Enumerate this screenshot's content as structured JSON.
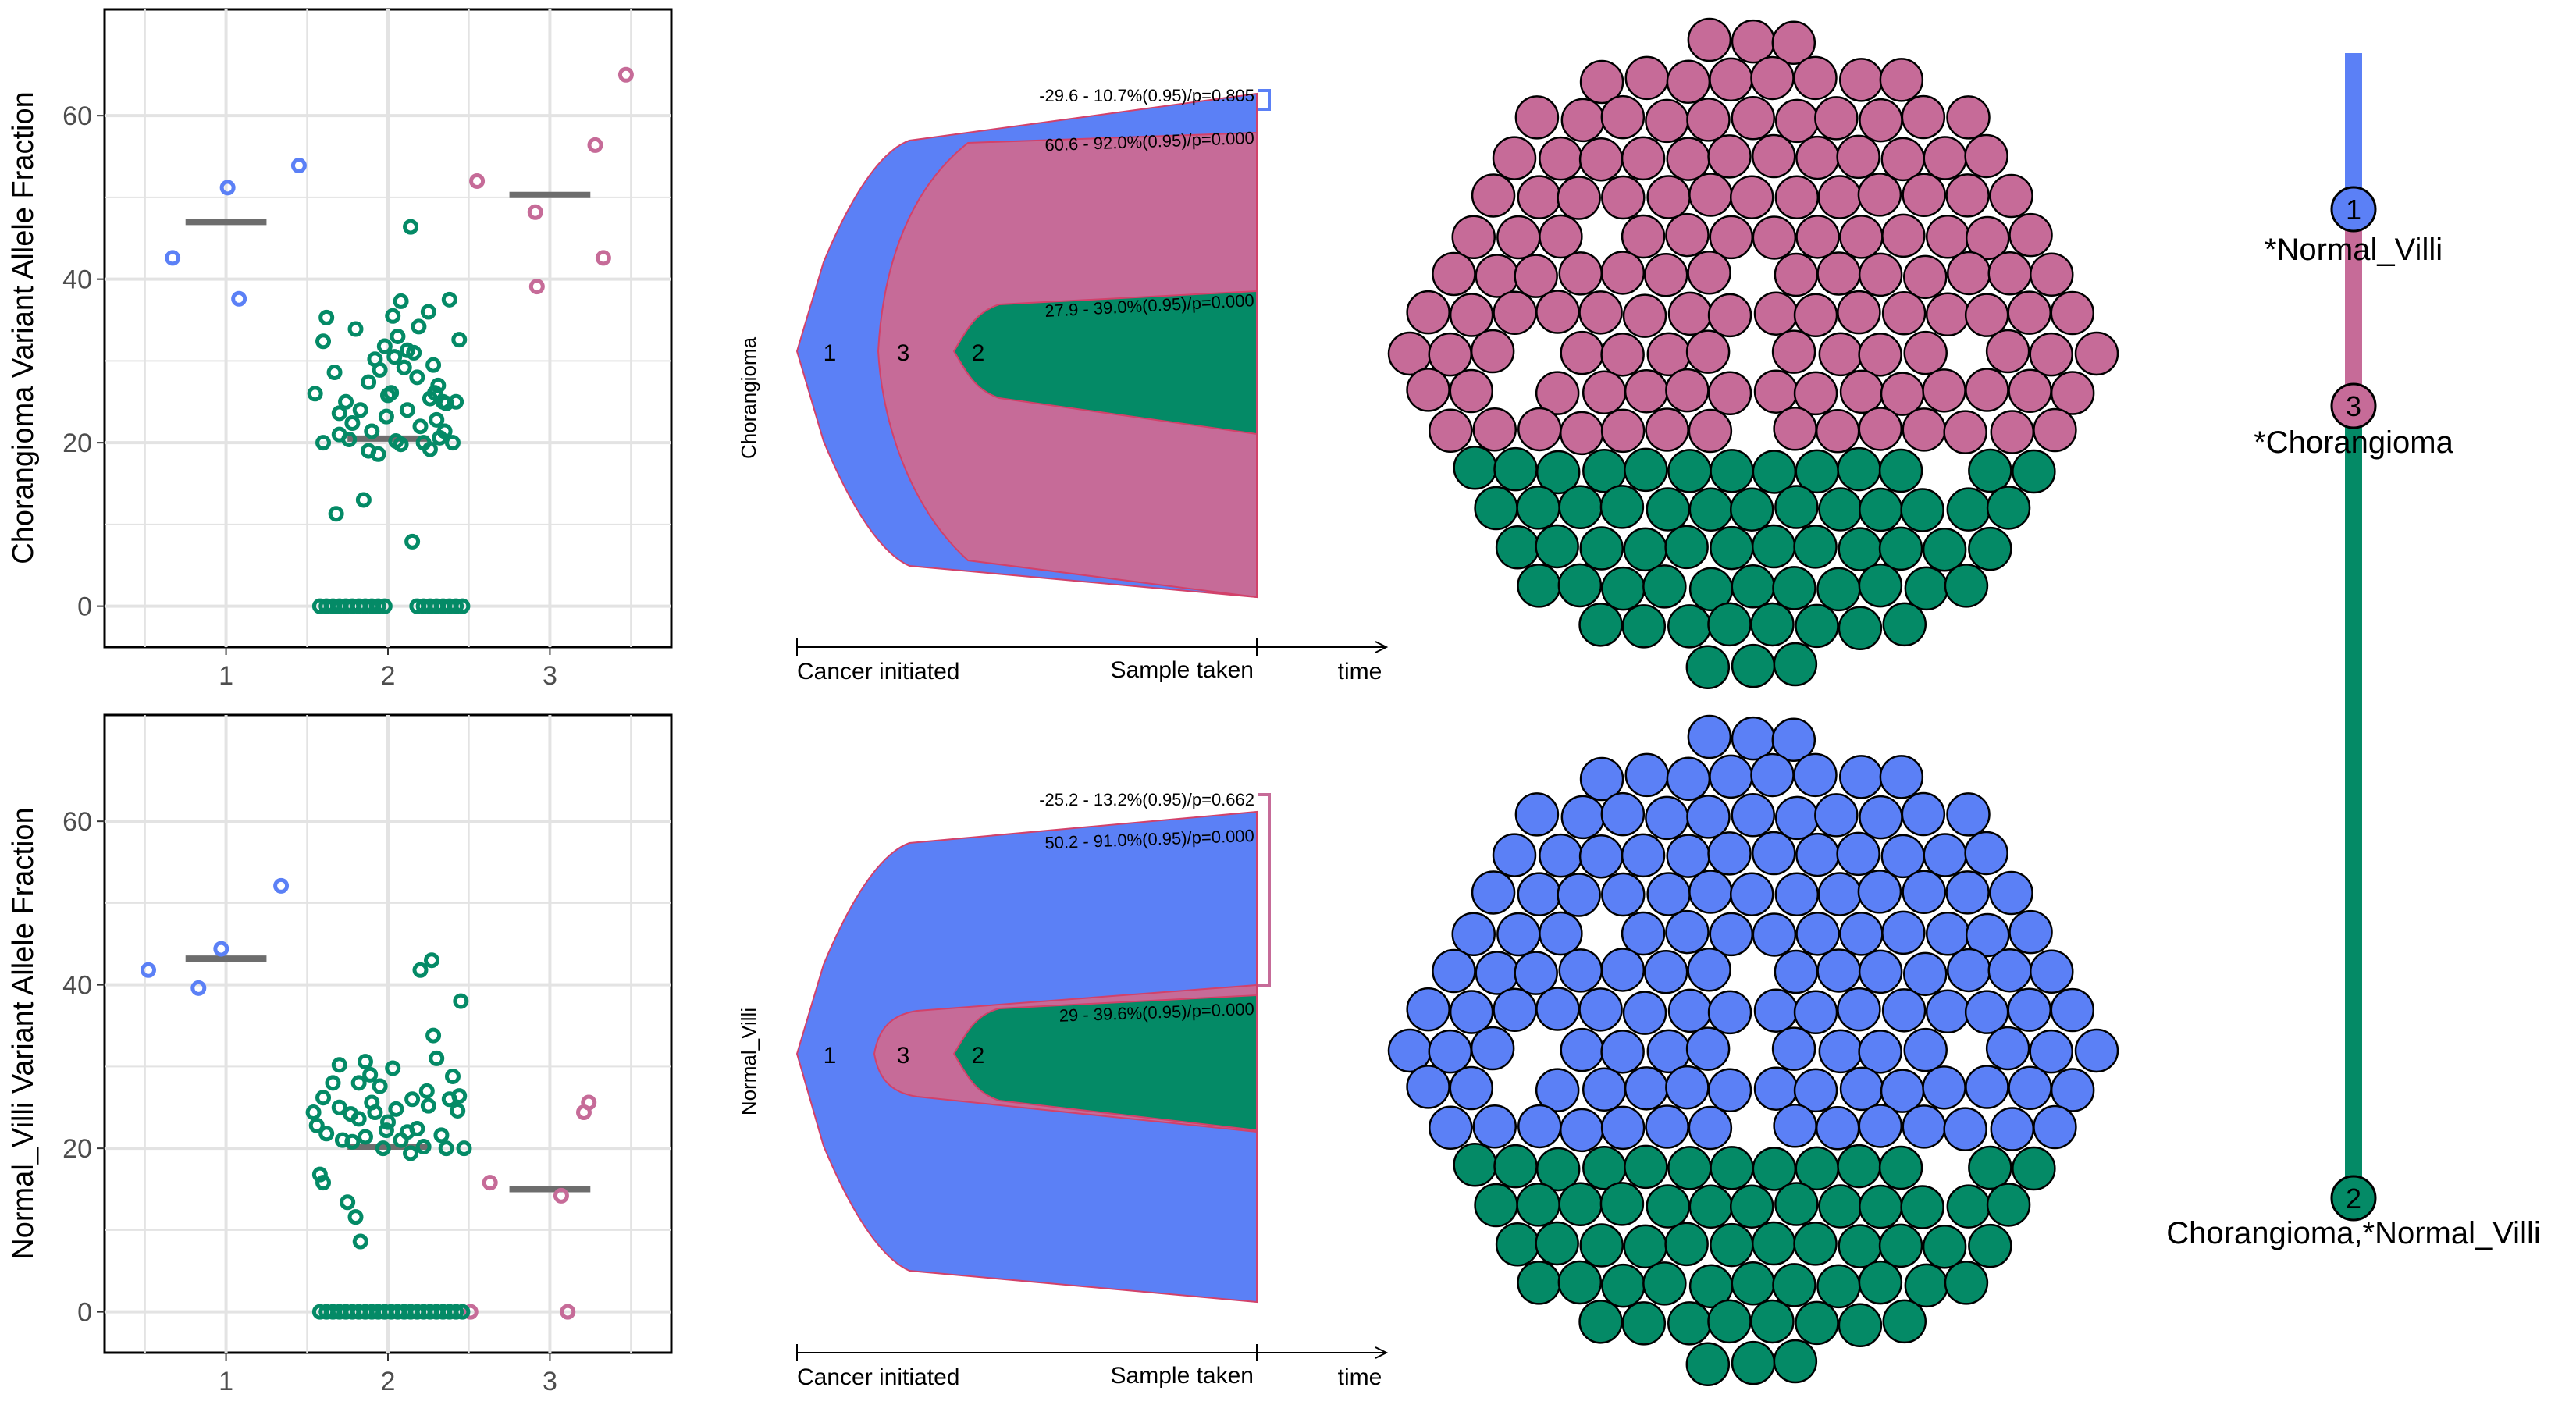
{
  "colors": {
    "clone1": "#5b80f6",
    "clone2": "#048a66",
    "clone3": "#c66b98",
    "median": "#6d6d6d",
    "grid": "#e3e3e3",
    "fishEdge": "#d2416a"
  },
  "chart_data": [
    {
      "type": "scatter",
      "sample": "Chorangioma",
      "ylabel": "Chorangioma Variant Allele Fraction",
      "xlabel": "",
      "x_ticks": [
        "1",
        "2",
        "3"
      ],
      "y_ticks": [
        "0",
        "20",
        "40",
        "60"
      ],
      "ylim": [
        -5,
        73
      ],
      "xlim": [
        0.25,
        3.75
      ],
      "grid": true,
      "medians": [
        {
          "cluster": 1,
          "value": 47
        },
        {
          "cluster": 2,
          "value": 20.5
        },
        {
          "cluster": 3,
          "value": 50.3
        }
      ],
      "series": [
        {
          "cluster": 1,
          "points": [
            [
              0.67,
              42.6
            ],
            [
              1.01,
              51.2
            ],
            [
              1.08,
              37.6
            ],
            [
              1.45,
              53.9
            ]
          ]
        },
        {
          "cluster": 3,
          "points": [
            [
              2.55,
              52.0
            ],
            [
              2.91,
              48.2
            ],
            [
              2.92,
              39.1
            ],
            [
              3.28,
              56.4
            ],
            [
              3.33,
              42.6
            ],
            [
              3.47,
              65.0
            ]
          ]
        },
        {
          "cluster": 2,
          "points": [
            [
              1.55,
              26.0
            ],
            [
              1.6,
              20.0
            ],
            [
              1.6,
              32.4
            ],
            [
              1.62,
              35.3
            ],
            [
              1.68,
              11.3
            ],
            [
              1.7,
              21.0
            ],
            [
              1.74,
              25.0
            ],
            [
              1.8,
              33.9
            ],
            [
              1.78,
              22.4
            ],
            [
              1.85,
              13.0
            ],
            [
              1.88,
              19.0
            ],
            [
              1.88,
              27.4
            ],
            [
              1.92,
              30.2
            ],
            [
              1.95,
              28.9
            ],
            [
              1.98,
              31.8
            ],
            [
              1.99,
              23.2
            ],
            [
              2.02,
              26.1
            ],
            [
              2.03,
              35.5
            ],
            [
              2.05,
              20.2
            ],
            [
              2.06,
              33.0
            ],
            [
              2.08,
              37.3
            ],
            [
              2.1,
              29.2
            ],
            [
              2.12,
              31.3
            ],
            [
              2.12,
              24.0
            ],
            [
              2.14,
              46.4
            ],
            [
              2.15,
              7.9
            ],
            [
              2.18,
              28.0
            ],
            [
              2.2,
              22.0
            ],
            [
              2.22,
              20.0
            ],
            [
              2.25,
              36.0
            ],
            [
              2.26,
              19.2
            ],
            [
              2.28,
              29.5
            ],
            [
              2.29,
              26.1
            ],
            [
              2.3,
              22.8
            ],
            [
              2.32,
              20.6
            ],
            [
              2.34,
              25.0
            ],
            [
              2.36,
              24.8
            ],
            [
              2.38,
              37.5
            ],
            [
              2.4,
              20.0
            ],
            [
              2.42,
              25.0
            ],
            [
              2.44,
              32.6
            ],
            [
              1.67,
              28.6
            ],
            [
              1.7,
              23.6
            ],
            [
              1.83,
              24.0
            ],
            [
              1.9,
              21.4
            ],
            [
              1.94,
              18.6
            ],
            [
              2.0,
              25.8
            ],
            [
              2.04,
              30.5
            ],
            [
              2.16,
              31.0
            ],
            [
              2.19,
              34.2
            ],
            [
              2.31,
              27.0
            ],
            [
              2.35,
              21.4
            ],
            [
              1.76,
              20.4
            ],
            [
              2.08,
              19.8
            ],
            [
              2.26,
              25.4
            ],
            [
              1.58,
              0
            ],
            [
              1.62,
              0
            ],
            [
              1.66,
              0
            ],
            [
              1.7,
              0
            ],
            [
              1.74,
              0
            ],
            [
              1.78,
              0
            ],
            [
              1.82,
              0
            ],
            [
              1.86,
              0
            ],
            [
              1.9,
              0
            ],
            [
              1.94,
              0
            ],
            [
              1.98,
              0
            ],
            [
              2.18,
              0
            ],
            [
              2.22,
              0
            ],
            [
              2.26,
              0
            ],
            [
              2.3,
              0
            ],
            [
              2.34,
              0
            ],
            [
              2.38,
              0
            ],
            [
              2.42,
              0
            ],
            [
              2.46,
              0
            ]
          ]
        }
      ]
    },
    {
      "type": "scatter",
      "sample": "Normal_Villi",
      "ylabel": "Normal_Villi Variant Allele Fraction",
      "xlabel": "",
      "x_ticks": [
        "1",
        "2",
        "3"
      ],
      "y_ticks": [
        "0",
        "20",
        "40",
        "60"
      ],
      "ylim": [
        -5,
        73
      ],
      "xlim": [
        0.25,
        3.75
      ],
      "grid": true,
      "medians": [
        {
          "cluster": 1,
          "value": 43.2
        },
        {
          "cluster": 2,
          "value": 20.2
        },
        {
          "cluster": 3,
          "value": 15.0
        }
      ],
      "series": [
        {
          "cluster": 1,
          "points": [
            [
              0.52,
              41.8
            ],
            [
              0.83,
              39.6
            ],
            [
              0.97,
              44.4
            ],
            [
              1.34,
              52.1
            ]
          ]
        },
        {
          "cluster": 3,
          "points": [
            [
              2.51,
              0
            ],
            [
              2.63,
              15.8
            ],
            [
              3.07,
              14.2
            ],
            [
              3.11,
              0
            ],
            [
              3.21,
              24.4
            ],
            [
              3.24,
              25.6
            ]
          ]
        },
        {
          "cluster": 2,
          "points": [
            [
              1.54,
              24.4
            ],
            [
              1.56,
              22.8
            ],
            [
              1.58,
              16.8
            ],
            [
              1.6,
              26.2
            ],
            [
              1.6,
              15.8
            ],
            [
              1.62,
              21.8
            ],
            [
              1.66,
              28.0
            ],
            [
              1.7,
              25.0
            ],
            [
              1.7,
              30.2
            ],
            [
              1.72,
              21.0
            ],
            [
              1.75,
              13.4
            ],
            [
              1.77,
              24.2
            ],
            [
              1.78,
              20.8
            ],
            [
              1.8,
              11.6
            ],
            [
              1.82,
              28.0
            ],
            [
              1.82,
              23.6
            ],
            [
              1.83,
              8.6
            ],
            [
              1.86,
              21.4
            ],
            [
              1.86,
              30.6
            ],
            [
              1.9,
              25.6
            ],
            [
              1.92,
              24.4
            ],
            [
              1.95,
              27.6
            ],
            [
              1.97,
              20.0
            ],
            [
              2.0,
              23.2
            ],
            [
              2.03,
              29.8
            ],
            [
              2.05,
              24.8
            ],
            [
              2.08,
              21.0
            ],
            [
              2.12,
              22.0
            ],
            [
              2.15,
              26.0
            ],
            [
              2.18,
              22.4
            ],
            [
              2.2,
              41.8
            ],
            [
              2.22,
              20.2
            ],
            [
              2.24,
              27.0
            ],
            [
              2.25,
              25.2
            ],
            [
              2.27,
              43.0
            ],
            [
              2.28,
              33.8
            ],
            [
              2.3,
              31.0
            ],
            [
              2.33,
              21.6
            ],
            [
              2.36,
              20.0
            ],
            [
              2.38,
              26.0
            ],
            [
              2.4,
              28.8
            ],
            [
              2.43,
              24.6
            ],
            [
              2.45,
              38.0
            ],
            [
              2.47,
              20.0
            ],
            [
              2.44,
              26.4
            ],
            [
              2.14,
              19.4
            ],
            [
              1.89,
              29.0
            ],
            [
              1.99,
              22.2
            ],
            [
              1.58,
              0
            ],
            [
              1.62,
              0
            ],
            [
              1.66,
              0
            ],
            [
              1.7,
              0
            ],
            [
              1.74,
              0
            ],
            [
              1.78,
              0
            ],
            [
              1.82,
              0
            ],
            [
              1.86,
              0
            ],
            [
              1.9,
              0
            ],
            [
              1.94,
              0
            ],
            [
              1.98,
              0
            ],
            [
              2.02,
              0
            ],
            [
              2.06,
              0
            ],
            [
              2.1,
              0
            ],
            [
              2.14,
              0
            ],
            [
              2.18,
              0
            ],
            [
              2.22,
              0
            ],
            [
              2.26,
              0
            ],
            [
              2.3,
              0
            ],
            [
              2.34,
              0
            ],
            [
              2.38,
              0
            ],
            [
              2.42,
              0
            ],
            [
              2.46,
              0
            ]
          ]
        }
      ]
    },
    {
      "type": "area",
      "sample": "Chorangioma",
      "ylabel": "Chorangioma",
      "x_ticks": [
        "Cancer initiated",
        "Sample taken"
      ],
      "xlabel": "time",
      "clone_labels": [
        "1",
        "3",
        "2"
      ],
      "ci_labels": [
        "-29.6 - 10.7%(0.95)/p=0.805",
        "60.6 - 92.0%(0.95)/p=0.000",
        "27.9 - 39.0%(0.95)/p=0.000"
      ]
    },
    {
      "type": "area",
      "sample": "Normal_Villi",
      "ylabel": "Normal_Villi",
      "x_ticks": [
        "Cancer initiated",
        "Sample taken"
      ],
      "xlabel": "time",
      "clone_labels": [
        "1",
        "3",
        "2"
      ],
      "ci_labels": [
        "-25.2 - 13.2%(0.95)/p=0.662",
        "50.2 - 91.0%(0.95)/p=0.000",
        "29 - 39.6%(0.95)/p=0.000"
      ]
    }
  ],
  "tree": {
    "nodes": [
      {
        "id": "1",
        "label": "*Normal_Villi"
      },
      {
        "id": "3",
        "label": "*Chorangioma"
      },
      {
        "id": "2",
        "label": "Chorangioma,*Normal_Villi"
      }
    ]
  }
}
